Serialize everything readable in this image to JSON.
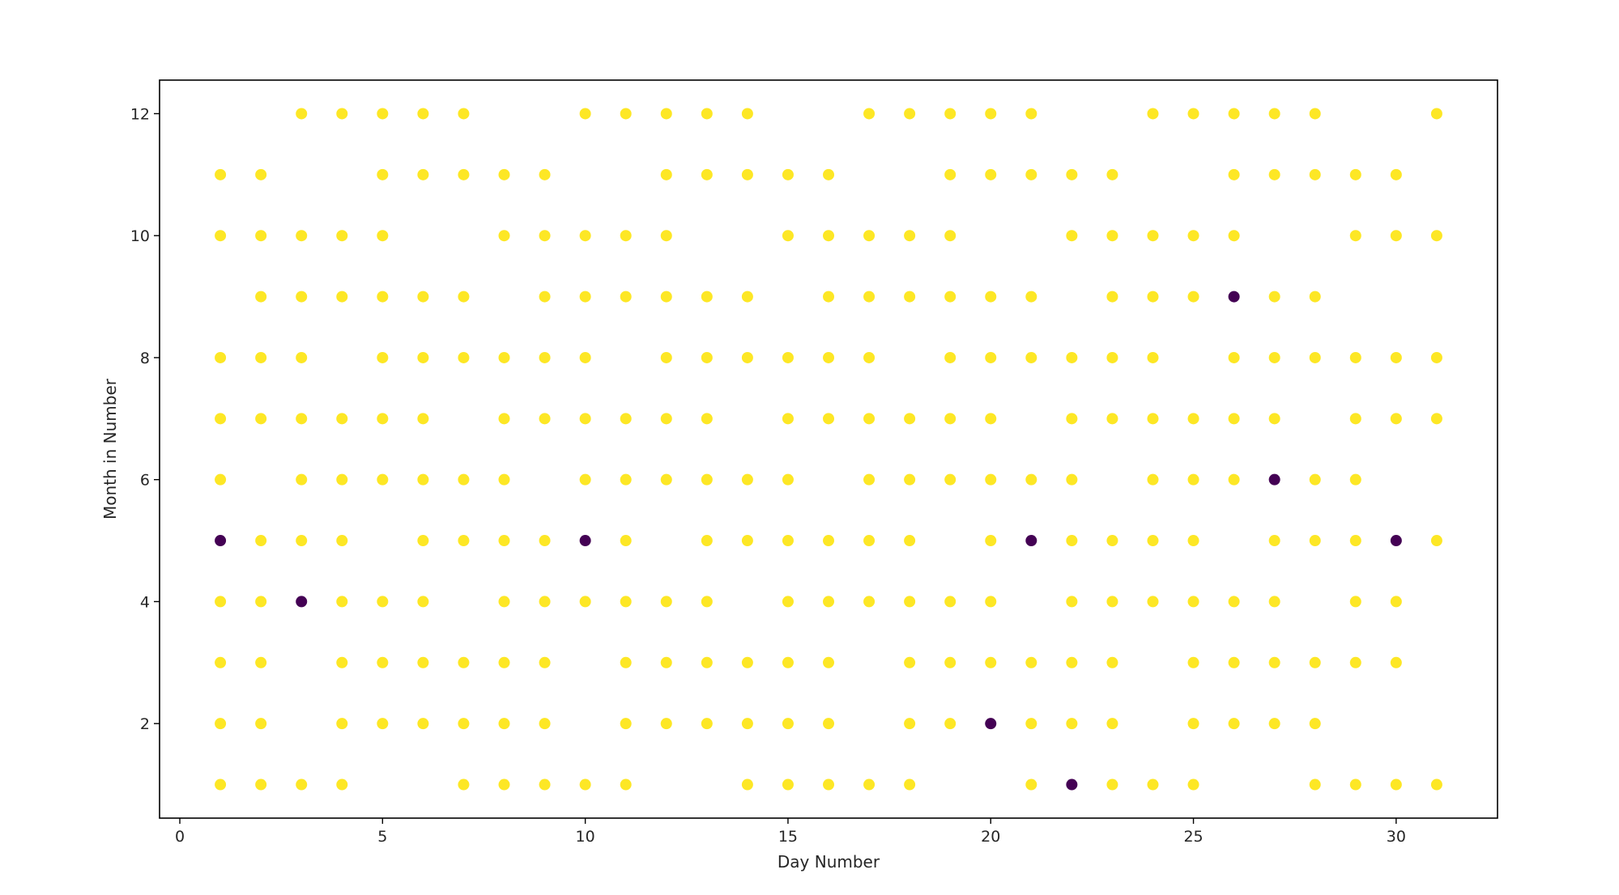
{
  "chart_data": {
    "type": "scatter",
    "title": "",
    "xlabel": "Day Number",
    "ylabel": "Month in Number",
    "xlim": [
      -0.5,
      32.5
    ],
    "ylim": [
      0.45,
      12.55
    ],
    "x_ticks": [
      0,
      5,
      10,
      15,
      20,
      25,
      30
    ],
    "y_ticks": [
      2,
      4,
      6,
      8,
      10,
      12
    ],
    "grid": false,
    "legend": "none",
    "colors": {
      "yellow": "#fde725",
      "purple": "#440154"
    },
    "series": [
      {
        "color": "#fde725",
        "points": [
          [
            3,
            12
          ],
          [
            4,
            12
          ],
          [
            5,
            12
          ],
          [
            6,
            12
          ],
          [
            7,
            12
          ],
          [
            10,
            12
          ],
          [
            11,
            12
          ],
          [
            12,
            12
          ],
          [
            13,
            12
          ],
          [
            14,
            12
          ],
          [
            17,
            12
          ],
          [
            18,
            12
          ],
          [
            19,
            12
          ],
          [
            20,
            12
          ],
          [
            21,
            12
          ],
          [
            24,
            12
          ],
          [
            25,
            12
          ],
          [
            26,
            12
          ],
          [
            27,
            12
          ],
          [
            28,
            12
          ],
          [
            31,
            12
          ],
          [
            1,
            11
          ],
          [
            2,
            11
          ],
          [
            5,
            11
          ],
          [
            6,
            11
          ],
          [
            7,
            11
          ],
          [
            8,
            11
          ],
          [
            9,
            11
          ],
          [
            12,
            11
          ],
          [
            13,
            11
          ],
          [
            14,
            11
          ],
          [
            15,
            11
          ],
          [
            16,
            11
          ],
          [
            19,
            11
          ],
          [
            20,
            11
          ],
          [
            21,
            11
          ],
          [
            22,
            11
          ],
          [
            23,
            11
          ],
          [
            26,
            11
          ],
          [
            27,
            11
          ],
          [
            28,
            11
          ],
          [
            29,
            11
          ],
          [
            30,
            11
          ],
          [
            1,
            10
          ],
          [
            2,
            10
          ],
          [
            3,
            10
          ],
          [
            4,
            10
          ],
          [
            5,
            10
          ],
          [
            8,
            10
          ],
          [
            9,
            10
          ],
          [
            10,
            10
          ],
          [
            11,
            10
          ],
          [
            12,
            10
          ],
          [
            15,
            10
          ],
          [
            16,
            10
          ],
          [
            17,
            10
          ],
          [
            18,
            10
          ],
          [
            19,
            10
          ],
          [
            22,
            10
          ],
          [
            23,
            10
          ],
          [
            24,
            10
          ],
          [
            25,
            10
          ],
          [
            26,
            10
          ],
          [
            29,
            10
          ],
          [
            30,
            10
          ],
          [
            31,
            10
          ],
          [
            2,
            9
          ],
          [
            3,
            9
          ],
          [
            4,
            9
          ],
          [
            5,
            9
          ],
          [
            6,
            9
          ],
          [
            7,
            9
          ],
          [
            9,
            9
          ],
          [
            10,
            9
          ],
          [
            11,
            9
          ],
          [
            12,
            9
          ],
          [
            13,
            9
          ],
          [
            14,
            9
          ],
          [
            16,
            9
          ],
          [
            17,
            9
          ],
          [
            18,
            9
          ],
          [
            19,
            9
          ],
          [
            20,
            9
          ],
          [
            21,
            9
          ],
          [
            23,
            9
          ],
          [
            24,
            9
          ],
          [
            25,
            9
          ],
          [
            27,
            9
          ],
          [
            28,
            9
          ],
          [
            1,
            8
          ],
          [
            2,
            8
          ],
          [
            3,
            8
          ],
          [
            5,
            8
          ],
          [
            6,
            8
          ],
          [
            7,
            8
          ],
          [
            8,
            8
          ],
          [
            9,
            8
          ],
          [
            10,
            8
          ],
          [
            12,
            8
          ],
          [
            13,
            8
          ],
          [
            14,
            8
          ],
          [
            15,
            8
          ],
          [
            16,
            8
          ],
          [
            17,
            8
          ],
          [
            19,
            8
          ],
          [
            20,
            8
          ],
          [
            21,
            8
          ],
          [
            22,
            8
          ],
          [
            23,
            8
          ],
          [
            24,
            8
          ],
          [
            26,
            8
          ],
          [
            27,
            8
          ],
          [
            28,
            8
          ],
          [
            29,
            8
          ],
          [
            30,
            8
          ],
          [
            31,
            8
          ],
          [
            1,
            7
          ],
          [
            2,
            7
          ],
          [
            3,
            7
          ],
          [
            4,
            7
          ],
          [
            5,
            7
          ],
          [
            6,
            7
          ],
          [
            8,
            7
          ],
          [
            9,
            7
          ],
          [
            10,
            7
          ],
          [
            11,
            7
          ],
          [
            12,
            7
          ],
          [
            13,
            7
          ],
          [
            15,
            7
          ],
          [
            16,
            7
          ],
          [
            17,
            7
          ],
          [
            18,
            7
          ],
          [
            19,
            7
          ],
          [
            20,
            7
          ],
          [
            22,
            7
          ],
          [
            23,
            7
          ],
          [
            24,
            7
          ],
          [
            25,
            7
          ],
          [
            26,
            7
          ],
          [
            27,
            7
          ],
          [
            29,
            7
          ],
          [
            30,
            7
          ],
          [
            31,
            7
          ],
          [
            1,
            6
          ],
          [
            3,
            6
          ],
          [
            4,
            6
          ],
          [
            5,
            6
          ],
          [
            6,
            6
          ],
          [
            7,
            6
          ],
          [
            8,
            6
          ],
          [
            10,
            6
          ],
          [
            11,
            6
          ],
          [
            12,
            6
          ],
          [
            13,
            6
          ],
          [
            14,
            6
          ],
          [
            15,
            6
          ],
          [
            17,
            6
          ],
          [
            18,
            6
          ],
          [
            19,
            6
          ],
          [
            20,
            6
          ],
          [
            21,
            6
          ],
          [
            22,
            6
          ],
          [
            24,
            6
          ],
          [
            25,
            6
          ],
          [
            26,
            6
          ],
          [
            28,
            6
          ],
          [
            29,
            6
          ],
          [
            2,
            5
          ],
          [
            3,
            5
          ],
          [
            4,
            5
          ],
          [
            6,
            5
          ],
          [
            7,
            5
          ],
          [
            8,
            5
          ],
          [
            9,
            5
          ],
          [
            11,
            5
          ],
          [
            13,
            5
          ],
          [
            14,
            5
          ],
          [
            15,
            5
          ],
          [
            16,
            5
          ],
          [
            17,
            5
          ],
          [
            18,
            5
          ],
          [
            20,
            5
          ],
          [
            22,
            5
          ],
          [
            23,
            5
          ],
          [
            24,
            5
          ],
          [
            25,
            5
          ],
          [
            27,
            5
          ],
          [
            28,
            5
          ],
          [
            29,
            5
          ],
          [
            31,
            5
          ],
          [
            1,
            4
          ],
          [
            2,
            4
          ],
          [
            4,
            4
          ],
          [
            5,
            4
          ],
          [
            6,
            4
          ],
          [
            8,
            4
          ],
          [
            9,
            4
          ],
          [
            10,
            4
          ],
          [
            11,
            4
          ],
          [
            12,
            4
          ],
          [
            13,
            4
          ],
          [
            15,
            4
          ],
          [
            16,
            4
          ],
          [
            17,
            4
          ],
          [
            18,
            4
          ],
          [
            19,
            4
          ],
          [
            20,
            4
          ],
          [
            22,
            4
          ],
          [
            23,
            4
          ],
          [
            24,
            4
          ],
          [
            25,
            4
          ],
          [
            26,
            4
          ],
          [
            27,
            4
          ],
          [
            29,
            4
          ],
          [
            30,
            4
          ],
          [
            1,
            3
          ],
          [
            2,
            3
          ],
          [
            4,
            3
          ],
          [
            5,
            3
          ],
          [
            6,
            3
          ],
          [
            7,
            3
          ],
          [
            8,
            3
          ],
          [
            9,
            3
          ],
          [
            11,
            3
          ],
          [
            12,
            3
          ],
          [
            13,
            3
          ],
          [
            14,
            3
          ],
          [
            15,
            3
          ],
          [
            16,
            3
          ],
          [
            18,
            3
          ],
          [
            19,
            3
          ],
          [
            20,
            3
          ],
          [
            21,
            3
          ],
          [
            22,
            3
          ],
          [
            23,
            3
          ],
          [
            25,
            3
          ],
          [
            26,
            3
          ],
          [
            27,
            3
          ],
          [
            28,
            3
          ],
          [
            29,
            3
          ],
          [
            30,
            3
          ],
          [
            1,
            2
          ],
          [
            2,
            2
          ],
          [
            4,
            2
          ],
          [
            5,
            2
          ],
          [
            6,
            2
          ],
          [
            7,
            2
          ],
          [
            8,
            2
          ],
          [
            9,
            2
          ],
          [
            11,
            2
          ],
          [
            12,
            2
          ],
          [
            13,
            2
          ],
          [
            14,
            2
          ],
          [
            15,
            2
          ],
          [
            16,
            2
          ],
          [
            18,
            2
          ],
          [
            19,
            2
          ],
          [
            21,
            2
          ],
          [
            22,
            2
          ],
          [
            23,
            2
          ],
          [
            25,
            2
          ],
          [
            26,
            2
          ],
          [
            27,
            2
          ],
          [
            28,
            2
          ],
          [
            1,
            1
          ],
          [
            2,
            1
          ],
          [
            3,
            1
          ],
          [
            4,
            1
          ],
          [
            7,
            1
          ],
          [
            8,
            1
          ],
          [
            9,
            1
          ],
          [
            10,
            1
          ],
          [
            11,
            1
          ],
          [
            14,
            1
          ],
          [
            15,
            1
          ],
          [
            16,
            1
          ],
          [
            17,
            1
          ],
          [
            18,
            1
          ],
          [
            21,
            1
          ],
          [
            23,
            1
          ],
          [
            24,
            1
          ],
          [
            25,
            1
          ],
          [
            28,
            1
          ],
          [
            29,
            1
          ],
          [
            30,
            1
          ],
          [
            31,
            1
          ]
        ]
      },
      {
        "color": "#440154",
        "points": [
          [
            26,
            9
          ],
          [
            27,
            6
          ],
          [
            1,
            5
          ],
          [
            10,
            5
          ],
          [
            21,
            5
          ],
          [
            30,
            5
          ],
          [
            3,
            4
          ],
          [
            20,
            2
          ],
          [
            22,
            1
          ]
        ]
      }
    ]
  }
}
